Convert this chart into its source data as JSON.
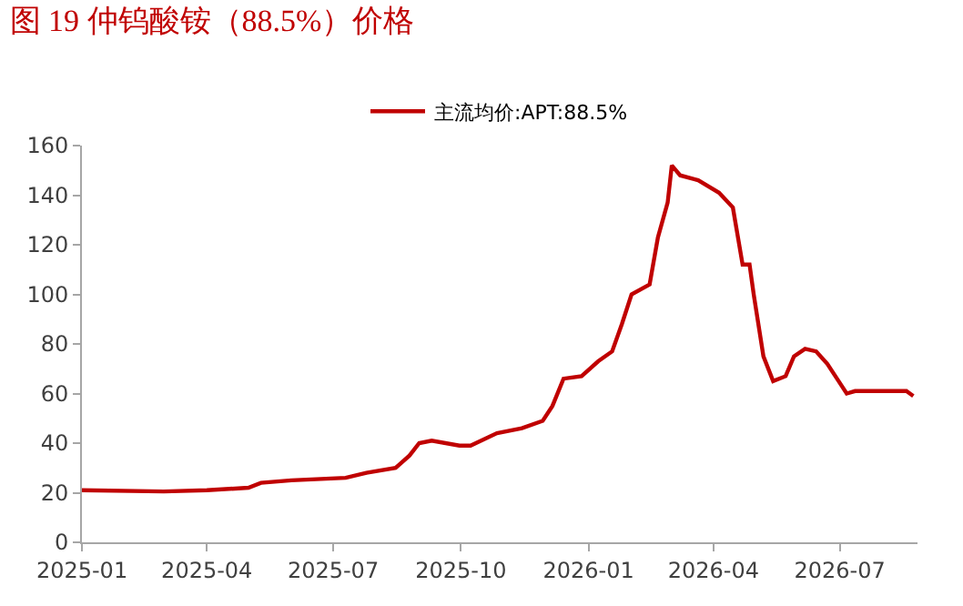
{
  "chart_data": {
    "type": "line",
    "title": "图 19 仲钨酸铵（88.5%）价格",
    "x": [
      "2025-01-01",
      "2025-03-01",
      "2025-04-01",
      "2025-05-01",
      "2025-05-10",
      "2025-06-01",
      "2025-07-10",
      "2025-07-25",
      "2025-08-15",
      "2025-08-25",
      "2025-09-01",
      "2025-09-10",
      "2025-09-30",
      "2025-10-08",
      "2025-10-27",
      "2025-11-14",
      "2025-11-29",
      "2025-12-06",
      "2025-12-14",
      "2025-12-27",
      "2026-01-08",
      "2026-01-18",
      "2026-01-25",
      "2026-02-01",
      "2026-02-14",
      "2026-02-20",
      "2026-02-27",
      "2026-03-02",
      "2026-03-08",
      "2026-03-21",
      "2026-04-05",
      "2026-04-15",
      "2026-04-22",
      "2026-04-27",
      "2026-04-30",
      "2026-05-07",
      "2026-05-14",
      "2026-05-23",
      "2026-05-29",
      "2026-06-06",
      "2026-06-14",
      "2026-06-22",
      "2026-06-29",
      "2026-07-06",
      "2026-07-12",
      "2026-08-18",
      "2026-08-23"
    ],
    "series": [
      {
        "name": "主流均价:APT:88.5%",
        "color": "#c00000",
        "values": [
          21,
          20.5,
          21,
          22,
          24,
          25,
          26,
          28,
          30,
          35,
          40,
          41,
          39,
          39,
          44,
          46,
          49,
          55,
          66,
          67,
          73,
          77,
          88,
          100,
          104,
          123,
          137,
          152,
          148,
          146,
          141,
          135,
          112,
          112,
          100,
          75,
          65,
          67,
          75,
          78,
          77,
          72,
          66,
          60,
          61,
          61,
          59
        ]
      }
    ],
    "xlim": [
      "2025-01-01",
      "2026-08-26"
    ],
    "xticks": [
      {
        "value": "2025-01-01",
        "label": "2025-01"
      },
      {
        "value": "2025-04-01",
        "label": "2025-04"
      },
      {
        "value": "2025-07-01",
        "label": "2025-07"
      },
      {
        "value": "2025-10-01",
        "label": "2025-10"
      },
      {
        "value": "2026-01-01",
        "label": "2026-01"
      },
      {
        "value": "2026-04-01",
        "label": "2026-04"
      },
      {
        "value": "2026-07-01",
        "label": "2026-07"
      }
    ],
    "ylim": [
      0,
      160
    ],
    "yticks": [
      0,
      20,
      40,
      60,
      80,
      100,
      120,
      140,
      160
    ],
    "legend": "top",
    "marker": "none",
    "line_style": "solid"
  }
}
